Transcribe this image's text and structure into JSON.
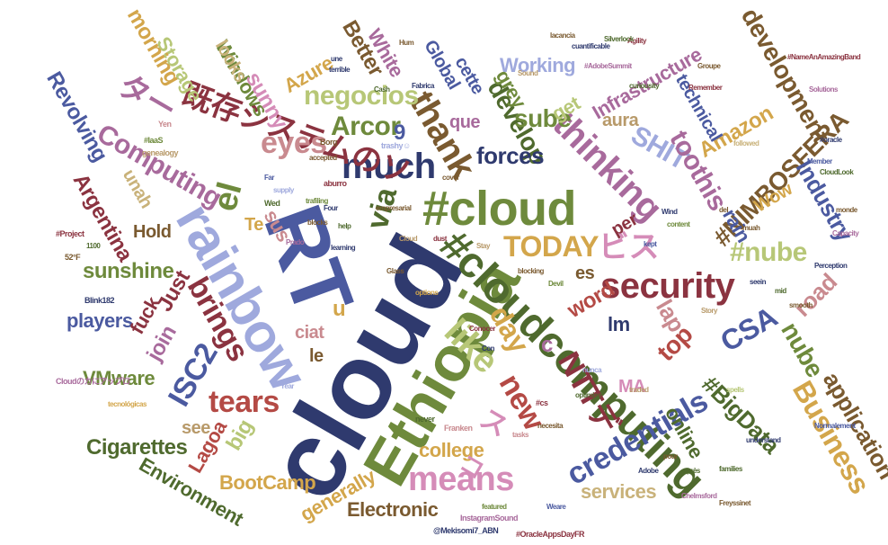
{
  "colors": {
    "navy": "#2f3a6e",
    "steel": "#4b5aa0",
    "lavender": "#9fa9dd",
    "olive": "#6e8a3c",
    "olive_dark": "#4f6a2e",
    "gold": "#d3a64b",
    "khaki": "#c9b27a",
    "sage": "#b7c777",
    "maroon": "#8b3340",
    "brick": "#b44a45",
    "rose": "#c98a8f",
    "pink": "#d58cb8",
    "mauve": "#a86a9c",
    "purple": "#7a4f93",
    "brown": "#7a5a30",
    "tan": "#b89a6a"
  },
  "words": {
    "cloud": "cloud",
    "rt": "RT",
    "rainbow": "rainbow",
    "ethiopia": "Ethiopia",
    "hash_cloud": "#cloud",
    "hash_cloudcomputing": "#cloudcomputing",
    "security": "security",
    "much": "much",
    "thinking": "thinking",
    "kizon": "既存システムのソ",
    "like": "like",
    "today": "TODAY",
    "bisu": "ビス",
    "thank": "thank",
    "credentials": "credentials",
    "means": "means",
    "tears": "tears",
    "isc2": "ISC2",
    "brings": "brings",
    "computing": "Computing",
    "nimbosfera": "#NIMBOSFERA",
    "hash_nube": "#nube",
    "csa": "CSA",
    "business": "Business",
    "application": "application",
    "bigdata": "#BigData",
    "ntt": "NTTデ",
    "day": "day",
    "new": "new",
    "via": "via",
    "el": "el",
    "eyes": "eyes",
    "negocios": "negocios",
    "arcor": "Arcor",
    "develop": "develop",
    "forces": "forces",
    "sube": "sube",
    "shit": "SHIT",
    "toothis": "toothis",
    "development": "development",
    "infrastructure": "Infrastructure",
    "industry": "Industry",
    "amazon": "Amazon",
    "working": "Working",
    "technical": "technical",
    "nube": "nube",
    "road": "road",
    "top": "top",
    "lap": "lap",
    "word": "word",
    "college": "college",
    "electronic": "Electronic",
    "generally": "generally",
    "bootcamp": "BootCamp",
    "environment": "Environment",
    "cigarettes": "Cigarettes",
    "vmware": "VMware",
    "players": "players",
    "revolving": "Revolving",
    "argentina": "Argentina",
    "storage": "Storage",
    "windows": "Windows",
    "azure": "Azure",
    "sunny": "sunny",
    "looks": "looks",
    "morning": "morning",
    "better": "Better",
    "white": "White",
    "global": "Global",
    "cette": "cette",
    "que": "que",
    "grey": "grey",
    "get": "get",
    "aura": "aura",
    "rain": "rain",
    "per": "per",
    "es": "es",
    "lm": "lm",
    "join": "join",
    "just": "Just",
    "hold": "Hold",
    "sunshine": "sunshine",
    "fuck": "fuck",
    "see": "see",
    "big": "big",
    "lagoa": "Lagoa",
    "te": "Te",
    "sus": "sus",
    "ciat": "ciat",
    "le": "le",
    "u": "u",
    "ma": "MA",
    "services": "services",
    "online": "online",
    "wow": "Wow",
    "ta": "ター",
    "su": "ス",
    "c": "c",
    "nine": "9",
    "unah": "unah",
    "com": "コ",
    "small": [
      "#IaaS",
      "genealogy",
      "Yen",
      "Borg",
      "Wed",
      "supply",
      "aburro",
      "trashy☺",
      "#Project",
      "1100",
      "52°F",
      "Blink182",
      "Cloudのカにアップロ",
      "tecnológicas",
      "Year",
      "never",
      "Franken",
      "#cs",
      "Adobe",
      "Chelmsford",
      "Freyssinet",
      "families",
      "understand",
      "Normalement",
      "spells",
      "featured",
      "@Mekisomi7_ABN",
      "#OracleAppsDayFR",
      "InstagramSound",
      "Weare",
      "tasks",
      "necesita",
      "optimise",
      "traded",
      "nunca",
      "après",
      "pour",
      "seein",
      "mid",
      "smooth",
      "Story",
      "Conocer",
      "Con",
      "blocking",
      "Devil",
      "Glass",
      "options",
      "Stay",
      "learning",
      "Perception",
      "Capacity",
      "monde",
      "Member",
      "CloudLook",
      "#oracle",
      "#NameAnAmazingBand",
      "Solutions",
      "Groupe",
      "Remember",
      "followed",
      "Sound",
      "cover",
      "Fabrica",
      "Hum",
      "une",
      "terrible",
      "Cash",
      "#AdobeSummit",
      "cuantificable",
      "Agility",
      "Silverlock",
      "lacancia",
      "curiousity",
      "Wind",
      "content",
      "del",
      "muah",
      "kept",
      "Far",
      "Prado",
      "accepted",
      "Four",
      "help",
      "dust",
      "Cloud",
      "blocks",
      "empresarial",
      "trafiling"
    ]
  }
}
